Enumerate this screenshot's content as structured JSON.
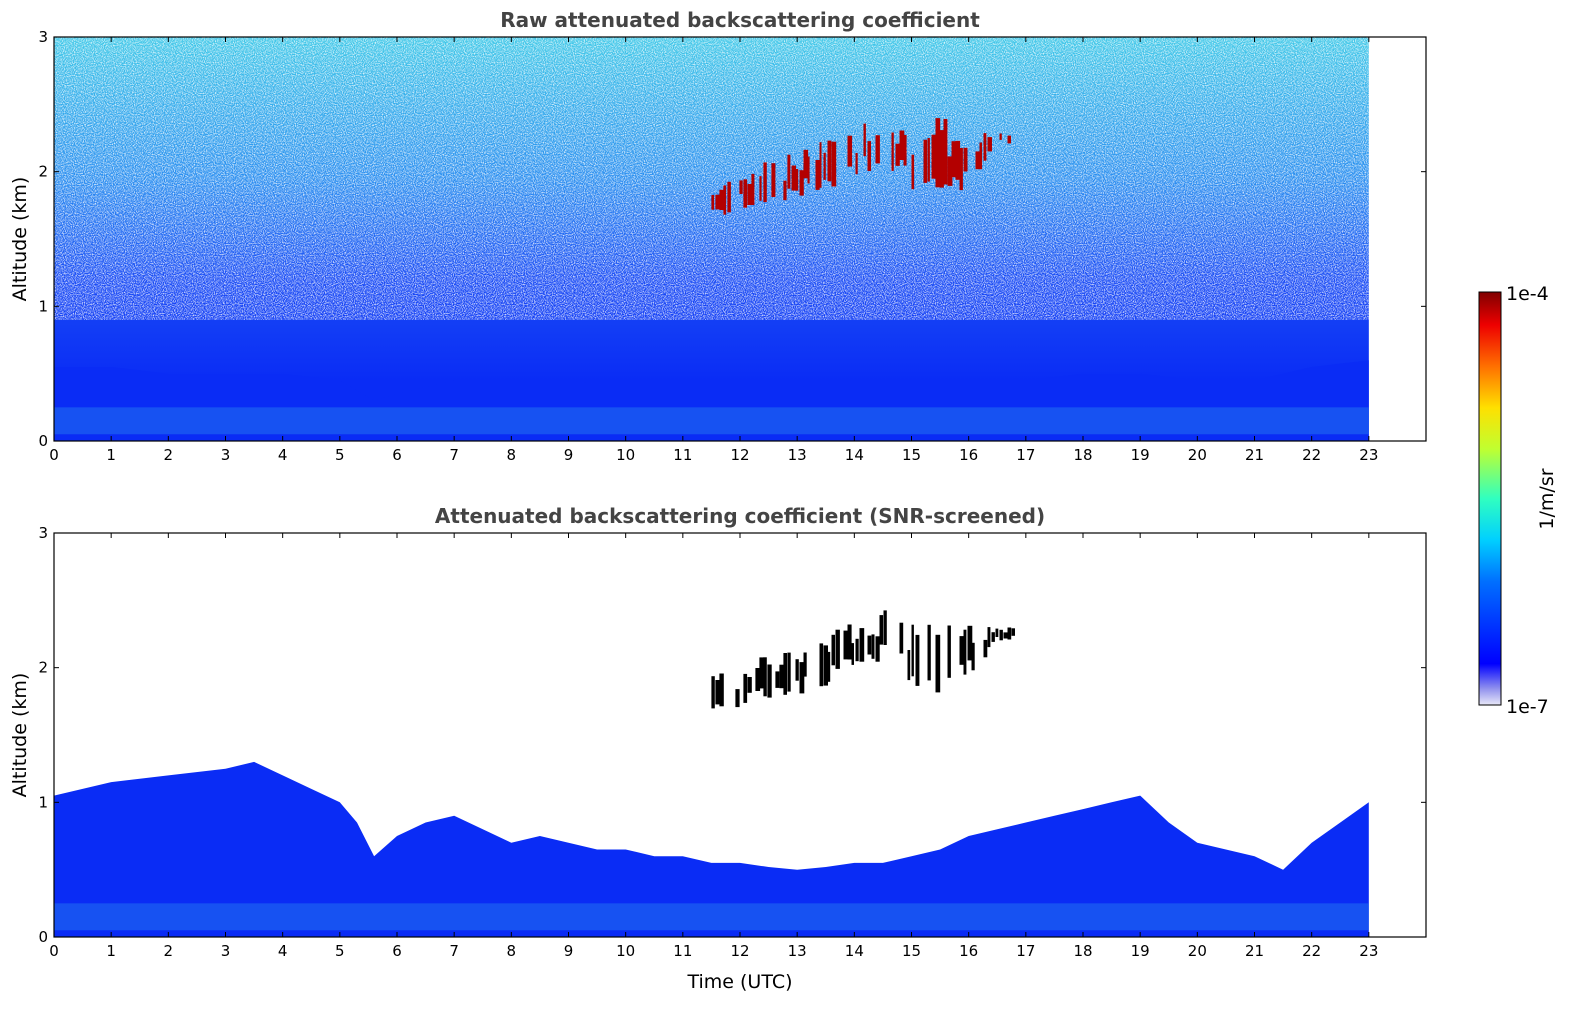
{
  "chart_data": [
    {
      "type": "heatmap",
      "title": "Raw attenuated backscattering coefficient",
      "xlabel": "",
      "ylabel": "Altitude (km)",
      "xlim": [
        0,
        24
      ],
      "ylim": [
        0,
        3
      ],
      "x_ticks": [
        "0",
        "1",
        "2",
        "3",
        "4",
        "5",
        "6",
        "7",
        "8",
        "9",
        "10",
        "11",
        "12",
        "13",
        "14",
        "15",
        "16",
        "17",
        "18",
        "19",
        "20",
        "21",
        "22",
        "23"
      ],
      "y_ticks": [
        "0",
        "1",
        "2",
        "3"
      ],
      "data_extent_time": [
        0,
        23
      ],
      "noisy_background": true,
      "boundary_layer_top_km": [
        [
          0,
          0.55
        ],
        [
          1,
          0.55
        ],
        [
          2,
          0.5
        ],
        [
          3,
          0.5
        ],
        [
          4,
          0.5
        ],
        [
          5,
          0.45
        ],
        [
          5.6,
          0.3
        ],
        [
          6,
          0.35
        ],
        [
          7,
          0.45
        ],
        [
          8,
          0.45
        ],
        [
          9,
          0.45
        ],
        [
          10,
          0.4
        ],
        [
          11,
          0.4
        ],
        [
          12,
          0.4
        ],
        [
          13,
          0.4
        ],
        [
          14,
          0.45
        ],
        [
          15,
          0.45
        ],
        [
          16,
          0.45
        ],
        [
          17,
          0.45
        ],
        [
          18,
          0.5
        ],
        [
          19,
          0.5
        ],
        [
          20,
          0.45
        ],
        [
          21,
          0.45
        ],
        [
          22,
          0.55
        ],
        [
          23,
          0.6
        ]
      ],
      "cloud_band": [
        {
          "time": 11.5,
          "base_km": 1.65,
          "top_km": 1.95
        },
        {
          "time": 12.0,
          "base_km": 1.7,
          "top_km": 2.05
        },
        {
          "time": 12.5,
          "base_km": 1.75,
          "top_km": 2.1
        },
        {
          "time": 13.0,
          "base_km": 1.8,
          "top_km": 2.15
        },
        {
          "time": 13.5,
          "base_km": 1.85,
          "top_km": 2.25
        },
        {
          "time": 14.0,
          "base_km": 1.95,
          "top_km": 2.35
        },
        {
          "time": 14.5,
          "base_km": 2.05,
          "top_km": 2.45
        },
        {
          "time": 15.0,
          "base_km": 1.85,
          "top_km": 2.45
        },
        {
          "time": 15.5,
          "base_km": 1.75,
          "top_km": 2.4
        },
        {
          "time": 16.0,
          "base_km": 1.9,
          "top_km": 2.35
        },
        {
          "time": 16.5,
          "base_km": 2.2,
          "top_km": 2.3
        },
        {
          "time": 16.8,
          "base_km": 2.2,
          "top_km": 2.3
        }
      ]
    },
    {
      "type": "heatmap",
      "title": "Attenuated backscattering coefficient (SNR-screened)",
      "xlabel": "Time (UTC)",
      "ylabel": "Altitude (km)",
      "xlim": [
        0,
        24
      ],
      "ylim": [
        0,
        3
      ],
      "x_ticks": [
        "0",
        "1",
        "2",
        "3",
        "4",
        "5",
        "6",
        "7",
        "8",
        "9",
        "10",
        "11",
        "12",
        "13",
        "14",
        "15",
        "16",
        "17",
        "18",
        "19",
        "20",
        "21",
        "22",
        "23"
      ],
      "y_ticks": [
        "0",
        "1",
        "2",
        "3"
      ],
      "data_extent_time": [
        0,
        23
      ],
      "noisy_background": false,
      "screened_top_km": [
        [
          0,
          1.05
        ],
        [
          0.5,
          1.1
        ],
        [
          1,
          1.15
        ],
        [
          2,
          1.2
        ],
        [
          3,
          1.25
        ],
        [
          3.5,
          1.3
        ],
        [
          4,
          1.2
        ],
        [
          4.5,
          1.1
        ],
        [
          5,
          1.0
        ],
        [
          5.3,
          0.85
        ],
        [
          5.6,
          0.6
        ],
        [
          6,
          0.75
        ],
        [
          6.5,
          0.85
        ],
        [
          7,
          0.9
        ],
        [
          7.5,
          0.8
        ],
        [
          8,
          0.7
        ],
        [
          8.5,
          0.75
        ],
        [
          9,
          0.7
        ],
        [
          9.5,
          0.65
        ],
        [
          10,
          0.65
        ],
        [
          10.5,
          0.6
        ],
        [
          11,
          0.6
        ],
        [
          11.5,
          0.55
        ],
        [
          12,
          0.55
        ],
        [
          12.5,
          0.52
        ],
        [
          13,
          0.5
        ],
        [
          13.5,
          0.52
        ],
        [
          14,
          0.55
        ],
        [
          14.5,
          0.55
        ],
        [
          15,
          0.6
        ],
        [
          15.5,
          0.65
        ],
        [
          16,
          0.75
        ],
        [
          16.5,
          0.8
        ],
        [
          17,
          0.85
        ],
        [
          17.5,
          0.9
        ],
        [
          18,
          0.95
        ],
        [
          18.5,
          1.0
        ],
        [
          19,
          1.05
        ],
        [
          19.5,
          0.85
        ],
        [
          20,
          0.7
        ],
        [
          20.5,
          0.65
        ],
        [
          21,
          0.6
        ],
        [
          21.5,
          0.5
        ],
        [
          22,
          0.7
        ],
        [
          22.5,
          0.85
        ],
        [
          23,
          1.0
        ]
      ],
      "cloud_band": [
        {
          "time": 11.5,
          "base_km": 1.65,
          "top_km": 1.95
        },
        {
          "time": 12.0,
          "base_km": 1.7,
          "top_km": 2.05
        },
        {
          "time": 12.5,
          "base_km": 1.75,
          "top_km": 2.1
        },
        {
          "time": 13.0,
          "base_km": 1.8,
          "top_km": 2.15
        },
        {
          "time": 13.5,
          "base_km": 1.85,
          "top_km": 2.25
        },
        {
          "time": 14.0,
          "base_km": 1.95,
          "top_km": 2.35
        },
        {
          "time": 14.5,
          "base_km": 2.05,
          "top_km": 2.45
        },
        {
          "time": 15.0,
          "base_km": 1.85,
          "top_km": 2.45
        },
        {
          "time": 15.5,
          "base_km": 1.75,
          "top_km": 2.4
        },
        {
          "time": 16.0,
          "base_km": 1.9,
          "top_km": 2.35
        },
        {
          "time": 16.5,
          "base_km": 2.2,
          "top_km": 2.3
        },
        {
          "time": 16.8,
          "base_km": 2.2,
          "top_km": 2.3
        }
      ]
    }
  ],
  "colorbar": {
    "label": "1/m/sr",
    "max_label": "1e-4",
    "min_label": "1e-7",
    "colormap": "jet",
    "scale": "log",
    "range": [
      1e-07,
      0.0001
    ]
  },
  "colors": {
    "boundary_layer": "#0a2cf5",
    "boundary_layer_light": "#1f6cf0",
    "noise_high": "#3fd0f0",
    "cloud": "#b30000",
    "cloud_screened": "#000000"
  }
}
